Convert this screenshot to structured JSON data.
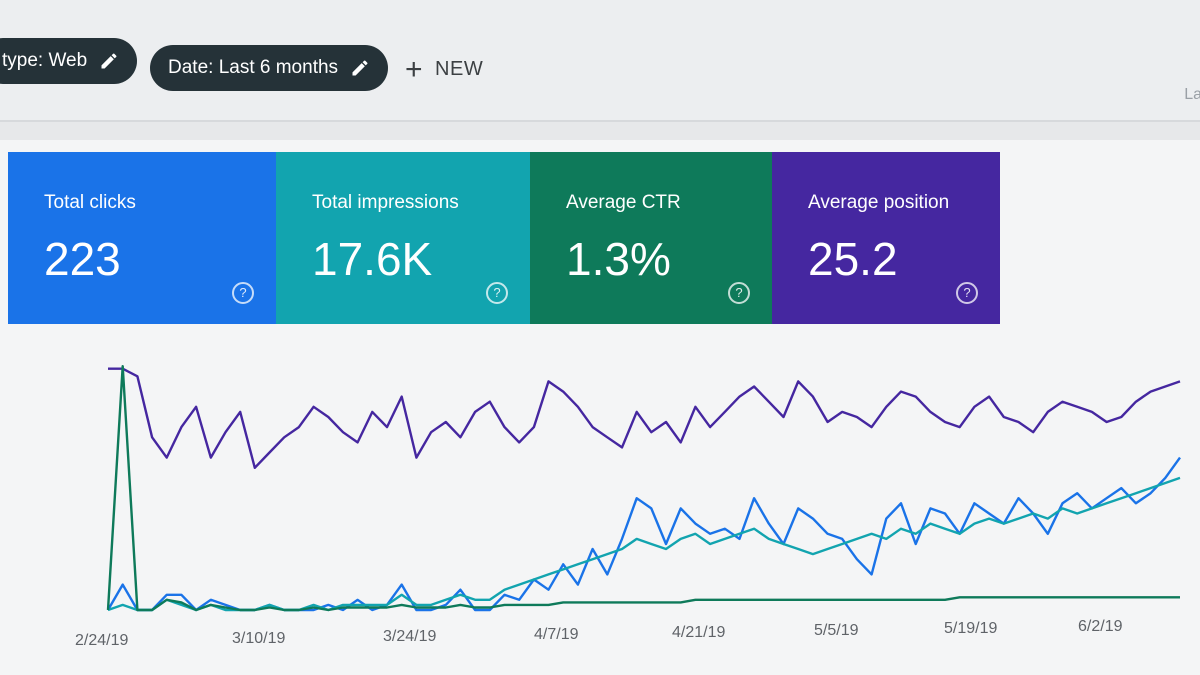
{
  "filters": {
    "type_chip": "type: Web",
    "date_chip": "Date: Last 6 months",
    "new_label": "NEW"
  },
  "corner_text": "La",
  "metrics": [
    {
      "label": "Total clicks",
      "value": "223",
      "color": "#1a73e8"
    },
    {
      "label": "Total impressions",
      "value": "17.6K",
      "color": "#12a4af"
    },
    {
      "label": "Average CTR",
      "value": "1.3%",
      "color": "#0e7a5a"
    },
    {
      "label": "Average position",
      "value": "25.2",
      "color": "#4527a0"
    }
  ],
  "chart_data": {
    "type": "line",
    "x_ticks": [
      "2/24/19",
      "3/10/19",
      "3/24/19",
      "4/7/19",
      "4/21/19",
      "5/5/19",
      "5/19/19",
      "6/2/19"
    ],
    "series": [
      {
        "color": "#4527a0",
        "values": [
          95,
          95,
          92,
          68,
          60,
          72,
          80,
          60,
          70,
          78,
          56,
          62,
          68,
          72,
          80,
          76,
          70,
          66,
          78,
          72,
          84,
          60,
          70,
          74,
          68,
          78,
          82,
          72,
          66,
          72,
          90,
          86,
          80,
          72,
          68,
          64,
          78,
          70,
          74,
          66,
          80,
          72,
          78,
          84,
          88,
          82,
          76,
          90,
          84,
          74,
          78,
          76,
          72,
          80,
          86,
          84,
          78,
          74,
          72,
          80,
          84,
          76,
          74,
          70,
          78,
          82,
          80,
          78,
          74,
          76,
          82,
          86,
          88,
          90
        ]
      },
      {
        "color": "#1a73e8",
        "values": [
          0,
          10,
          0,
          0,
          6,
          6,
          0,
          4,
          2,
          0,
          0,
          2,
          0,
          0,
          0,
          2,
          0,
          4,
          0,
          2,
          10,
          0,
          0,
          2,
          8,
          0,
          0,
          6,
          4,
          12,
          8,
          18,
          10,
          24,
          14,
          28,
          44,
          40,
          26,
          40,
          34,
          30,
          32,
          28,
          44,
          34,
          26,
          40,
          36,
          30,
          28,
          20,
          14,
          36,
          42,
          26,
          40,
          38,
          30,
          42,
          38,
          34,
          44,
          38,
          30,
          42,
          46,
          40,
          44,
          48,
          42,
          46,
          52,
          60
        ]
      },
      {
        "color": "#12a4af",
        "values": [
          0,
          2,
          0,
          0,
          4,
          2,
          0,
          2,
          0,
          0,
          0,
          2,
          0,
          0,
          2,
          0,
          2,
          2,
          2,
          2,
          6,
          2,
          2,
          4,
          6,
          4,
          4,
          8,
          10,
          12,
          14,
          16,
          18,
          20,
          22,
          24,
          28,
          26,
          24,
          28,
          30,
          26,
          28,
          30,
          32,
          28,
          26,
          24,
          22,
          24,
          26,
          28,
          30,
          28,
          32,
          30,
          34,
          32,
          30,
          34,
          36,
          34,
          36,
          38,
          36,
          40,
          38,
          40,
          42,
          44,
          46,
          48,
          50,
          52
        ]
      },
      {
        "color": "#0e7a5a",
        "values": [
          0,
          96,
          0,
          0,
          4,
          3,
          0,
          2,
          1,
          0,
          0,
          1,
          0,
          0,
          1,
          0,
          1,
          1,
          1,
          1,
          2,
          1,
          1,
          1,
          2,
          1,
          1,
          2,
          2,
          2,
          2,
          3,
          3,
          3,
          3,
          3,
          3,
          3,
          3,
          3,
          4,
          4,
          4,
          4,
          4,
          4,
          4,
          4,
          4,
          4,
          4,
          4,
          4,
          4,
          4,
          4,
          4,
          4,
          5,
          5,
          5,
          5,
          5,
          5,
          5,
          5,
          5,
          5,
          5,
          5,
          5,
          5,
          5,
          5
        ]
      }
    ]
  }
}
